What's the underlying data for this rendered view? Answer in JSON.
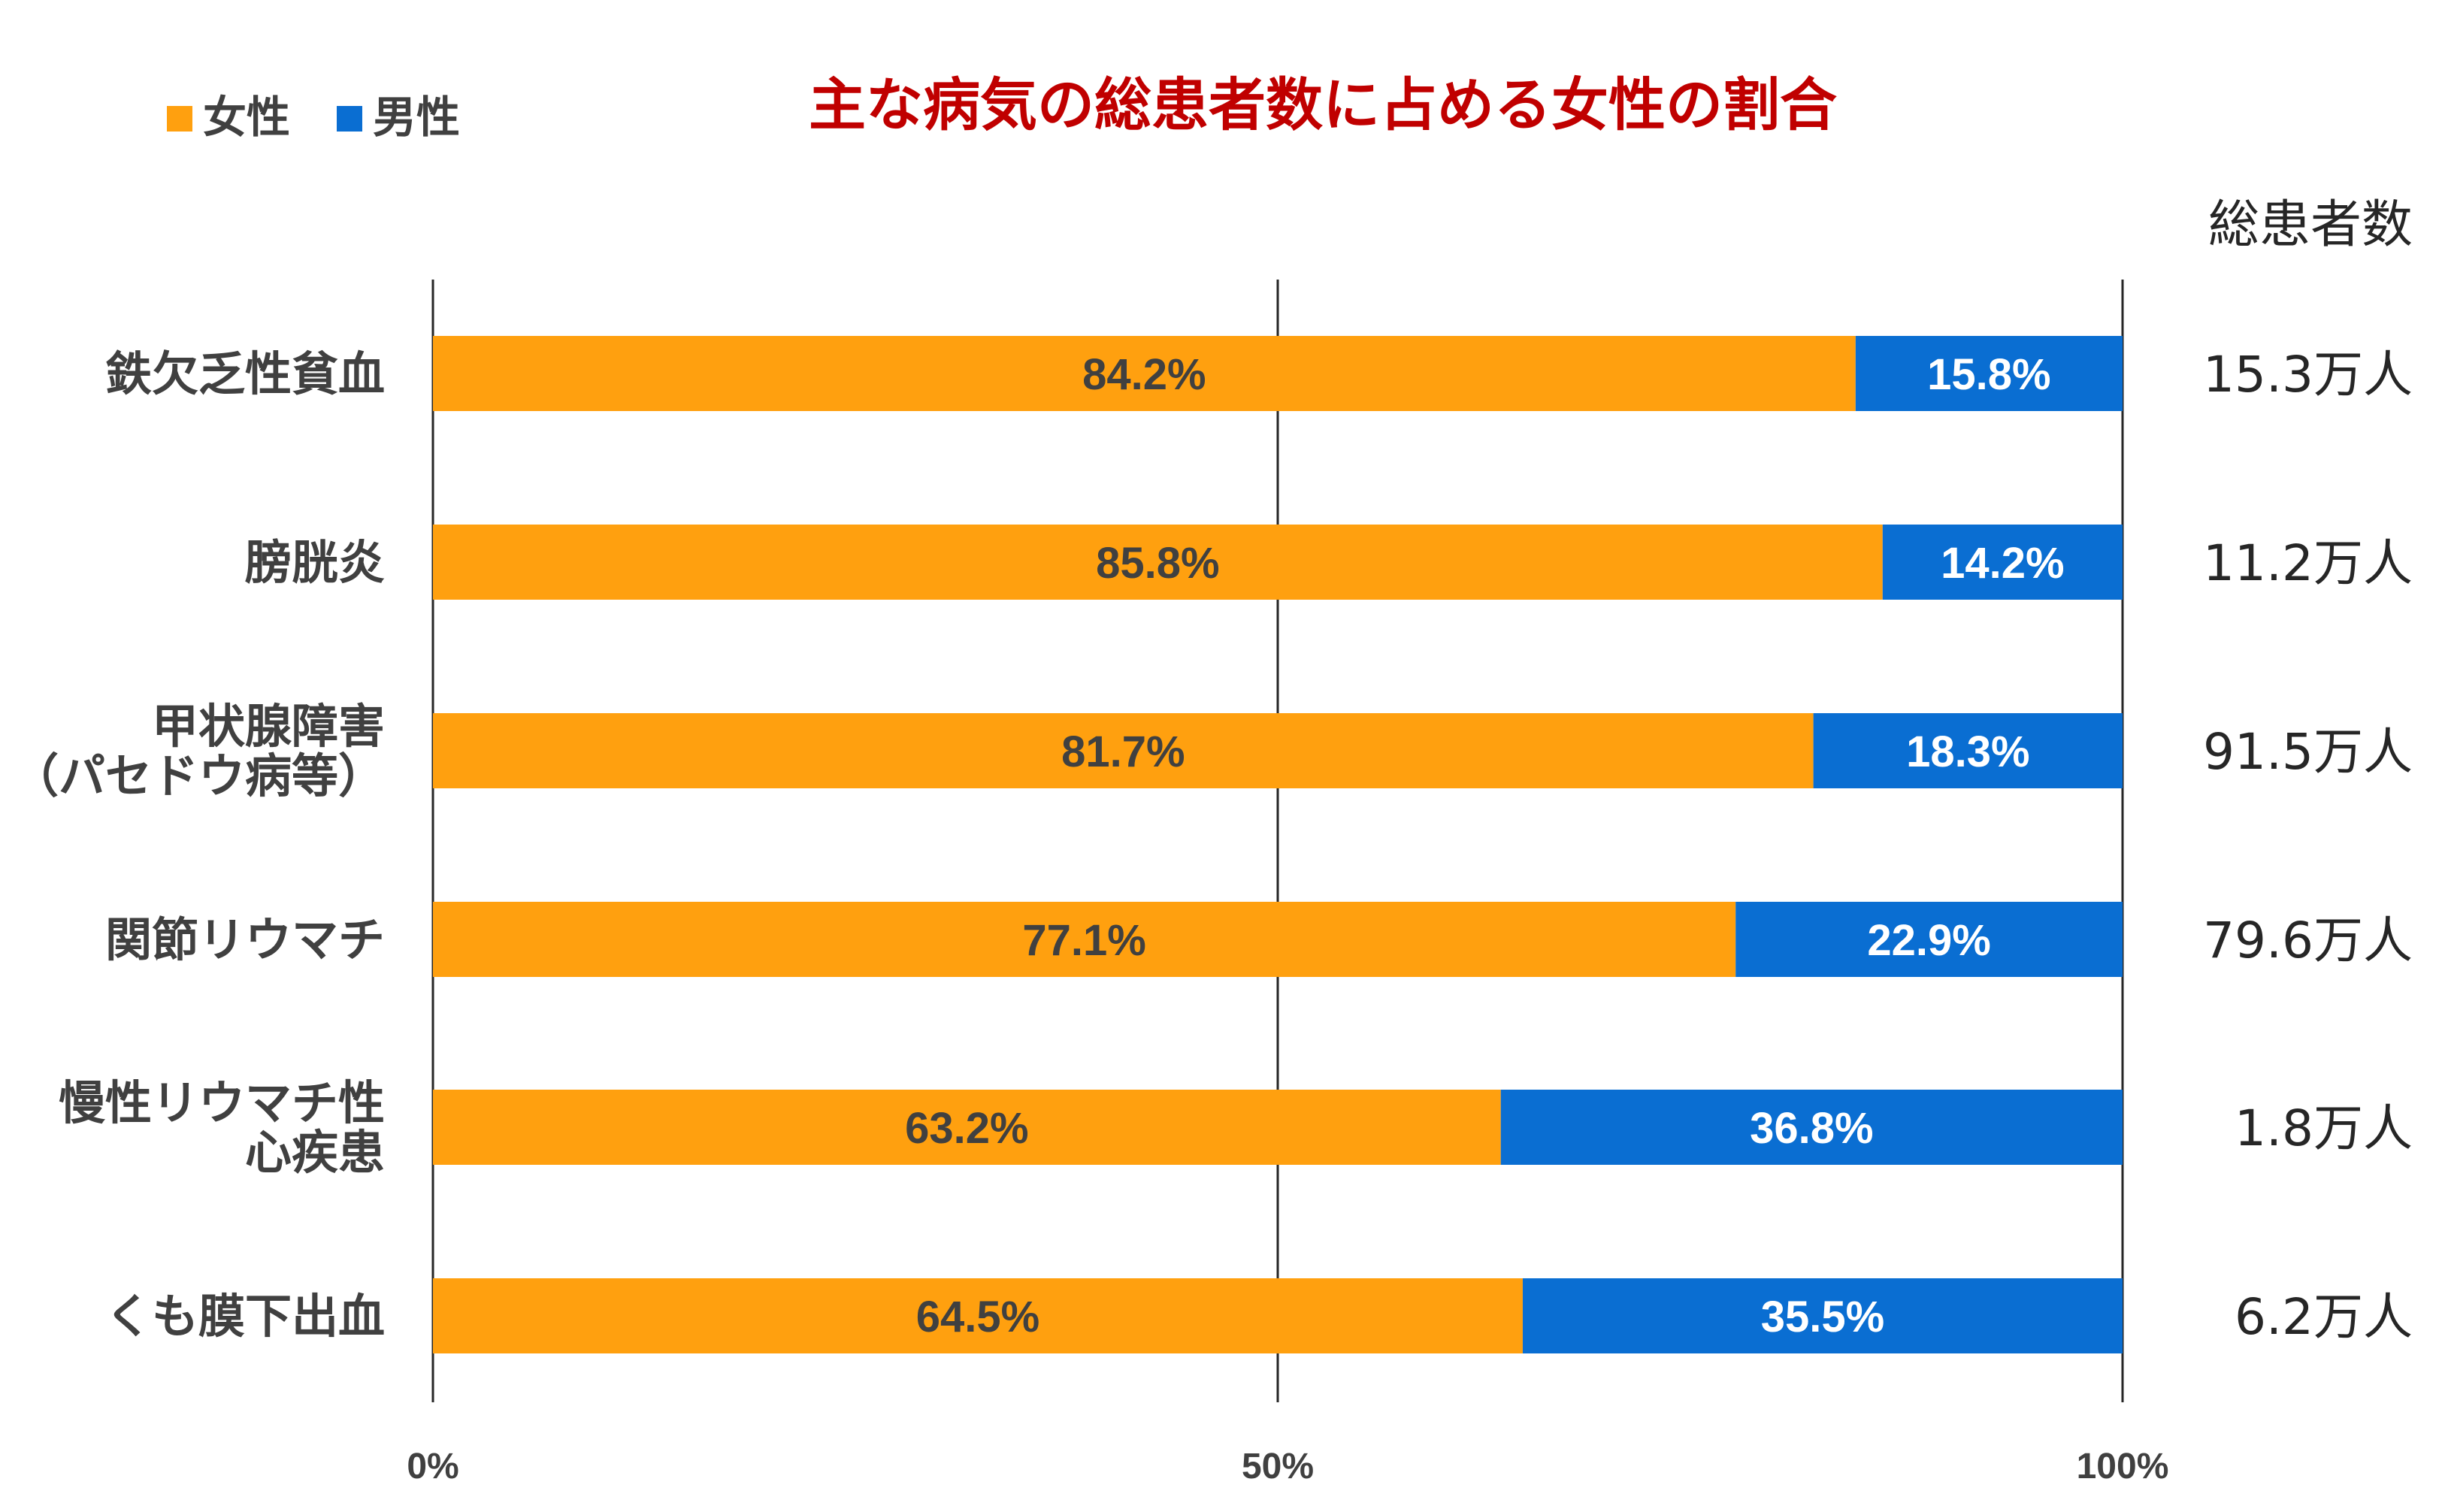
{
  "chart_data": {
    "type": "bar",
    "orientation": "horizontal",
    "stacked": true,
    "percent_stacked": true,
    "title": "主な病気の総患者数に占める女性の割合",
    "categories": [
      [
        "鉄欠乏性貧血"
      ],
      [
        "膀胱炎"
      ],
      [
        "甲状腺障害",
        "（パセドウ病等）"
      ],
      [
        "関節リウマチ"
      ],
      [
        "慢性リウマチ性",
        "心疾患"
      ],
      [
        "くも膜下出血"
      ]
    ],
    "series": [
      {
        "name": "女性",
        "color": "#ffa00f",
        "values": [
          84.2,
          85.8,
          81.7,
          77.1,
          63.2,
          64.5
        ],
        "labels": [
          "84.2%",
          "85.8%",
          "81.7%",
          "77.1%",
          "63.2%",
          "64.5%"
        ]
      },
      {
        "name": "男性",
        "color": "#0a6ed2",
        "values": [
          15.8,
          14.2,
          18.3,
          22.9,
          36.8,
          35.5
        ],
        "labels": [
          "15.8%",
          "14.2%",
          "18.3%",
          "22.9%",
          "36.8%",
          "35.5%"
        ]
      }
    ],
    "totals_header": "総患者数",
    "totals": [
      "15.3万人",
      "11.2万人",
      "91.5万人",
      "79.6万人",
      "1.8万人",
      "6.2万人"
    ],
    "x_ticks": [
      "0%",
      "50%",
      "100%"
    ],
    "xlim": [
      0,
      100
    ],
    "gridlines": "vertical at 0%, 50%, 100%",
    "legend_position": "top-left"
  },
  "colors": {
    "title": "#c00000",
    "text": "#404040",
    "gridline": "#262626"
  }
}
